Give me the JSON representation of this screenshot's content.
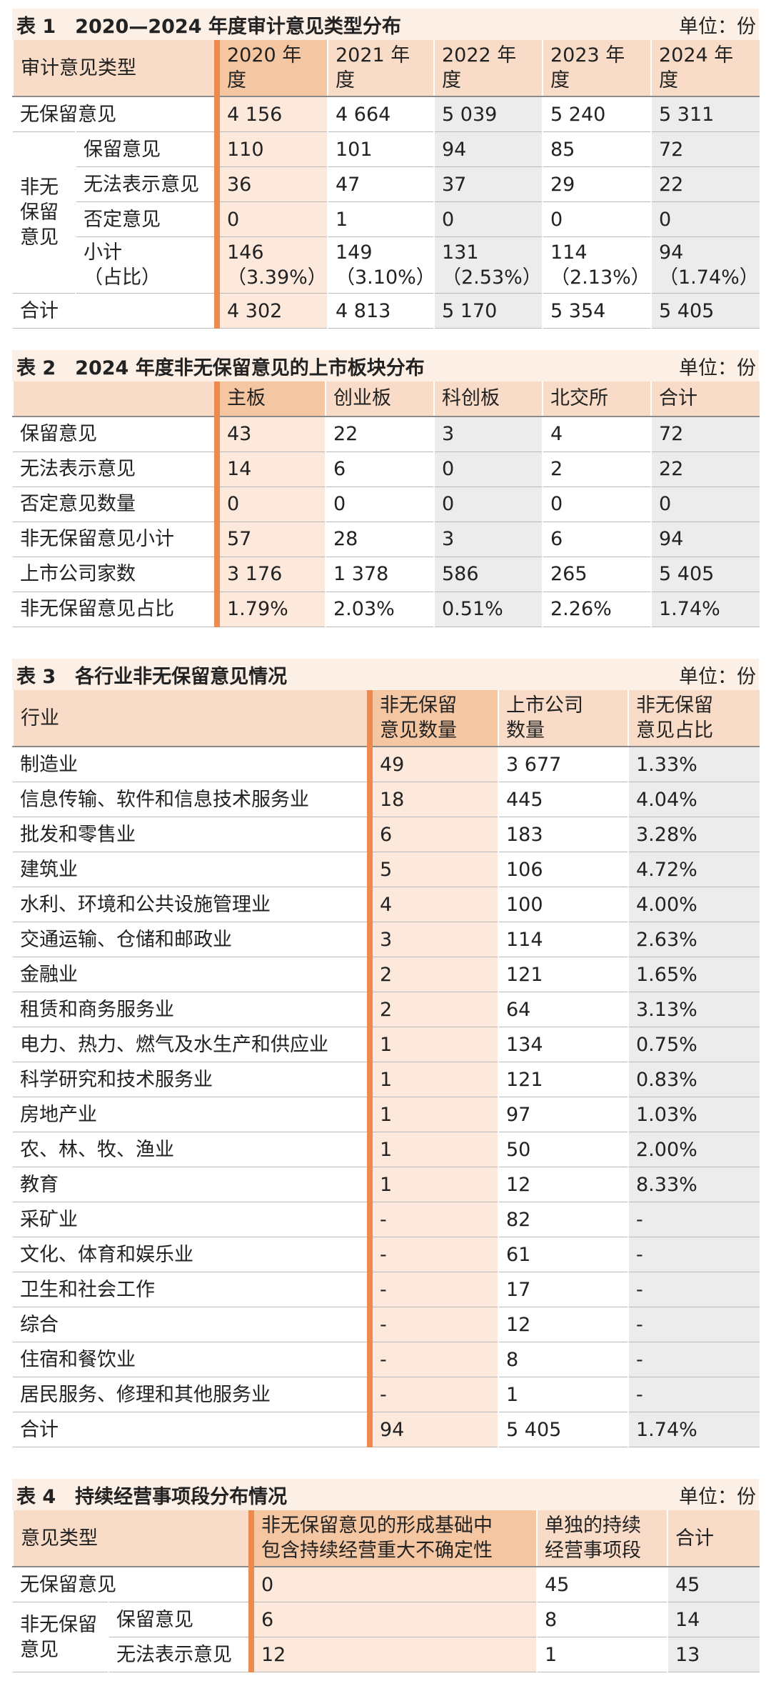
{
  "tables": [
    {
      "title": "表 1　2020—2024 年度审计意见类型分布",
      "unit": "单位：份",
      "header": [
        "审计意见类型",
        "2020 年度",
        "2021 年度",
        "2022 年度",
        "2023 年度",
        "2024 年度"
      ],
      "rows": [
        {
          "label": "无保留意见",
          "values": [
            "4 156",
            "4 664",
            "5 039",
            "5 240",
            "5 311"
          ]
        },
        {
          "group": "非无\n保留\n意见",
          "rows": [
            {
              "label": "保留意见",
              "values": [
                "110",
                "101",
                "94",
                "85",
                "72"
              ]
            },
            {
              "label": "无法表示意见",
              "values": [
                "36",
                "47",
                "37",
                "29",
                "22"
              ]
            },
            {
              "label": "否定意见",
              "values": [
                "0",
                "1",
                "0",
                "0",
                "0"
              ]
            },
            {
              "label": "小计\n（占比）",
              "values": [
                "146\n（3.39%）",
                "149\n（3.10%）",
                "131\n（2.53%）",
                "114\n（2.13%）",
                "94\n（1.74%）"
              ]
            }
          ]
        },
        {
          "label": "合计",
          "values": [
            "4 302",
            "4 813",
            "5 170",
            "5 354",
            "5 405"
          ]
        }
      ]
    },
    {
      "title": "表 2　2024 年度非无保留意见的上市板块分布",
      "unit": "单位：份",
      "header": [
        "主板",
        "创业板",
        "科创板",
        "北交所",
        "合计"
      ],
      "rows": [
        {
          "label": "保留意见",
          "values": [
            "43",
            "22",
            "3",
            "4",
            "72"
          ]
        },
        {
          "label": "无法表示意见",
          "values": [
            "14",
            "6",
            "0",
            "2",
            "22"
          ]
        },
        {
          "label": "否定意见数量",
          "values": [
            "0",
            "0",
            "0",
            "0",
            "0"
          ]
        },
        {
          "label": "非无保留意见小计",
          "values": [
            "57",
            "28",
            "3",
            "6",
            "94"
          ]
        },
        {
          "label": "上市公司家数",
          "values": [
            "3 176",
            "1 378",
            "586",
            "265",
            "5 405"
          ]
        },
        {
          "label": "非无保留意见占比",
          "values": [
            "1.79%",
            "2.03%",
            "0.51%",
            "2.26%",
            "1.74%"
          ]
        }
      ]
    },
    {
      "title": "表 3　各行业非无保留意见情况",
      "unit": "单位：份",
      "header": [
        "行业",
        "非无保留\n意见数量",
        "上市公司\n数量",
        "非无保留\n意见占比"
      ],
      "rows": [
        {
          "label": "制造业",
          "values": [
            "49",
            "3 677",
            "1.33%"
          ]
        },
        {
          "label": "信息传输、软件和信息技术服务业",
          "values": [
            "18",
            "445",
            "4.04%"
          ]
        },
        {
          "label": "批发和零售业",
          "values": [
            "6",
            "183",
            "3.28%"
          ]
        },
        {
          "label": "建筑业",
          "values": [
            "5",
            "106",
            "4.72%"
          ]
        },
        {
          "label": "水利、环境和公共设施管理业",
          "values": [
            "4",
            "100",
            "4.00%"
          ]
        },
        {
          "label": "交通运输、仓储和邮政业",
          "values": [
            "3",
            "114",
            "2.63%"
          ]
        },
        {
          "label": "金融业",
          "values": [
            "2",
            "121",
            "1.65%"
          ]
        },
        {
          "label": "租赁和商务服务业",
          "values": [
            "2",
            "64",
            "3.13%"
          ]
        },
        {
          "label": "电力、热力、燃气及水生产和供应业",
          "values": [
            "1",
            "134",
            "0.75%"
          ]
        },
        {
          "label": "科学研究和技术服务业",
          "values": [
            "1",
            "121",
            "0.83%"
          ]
        },
        {
          "label": "房地产业",
          "values": [
            "1",
            "97",
            "1.03%"
          ]
        },
        {
          "label": "农、林、牧、渔业",
          "values": [
            "1",
            "50",
            "2.00%"
          ]
        },
        {
          "label": "教育",
          "values": [
            "1",
            "12",
            "8.33%"
          ]
        },
        {
          "label": "采矿业",
          "values": [
            "-",
            "82",
            "-"
          ]
        },
        {
          "label": "文化、体育和娱乐业",
          "values": [
            "-",
            "61",
            "-"
          ]
        },
        {
          "label": "卫生和社会工作",
          "values": [
            "-",
            "17",
            "-"
          ]
        },
        {
          "label": "综合",
          "values": [
            "-",
            "12",
            "-"
          ]
        },
        {
          "label": "住宿和餐饮业",
          "values": [
            "-",
            "8",
            "-"
          ]
        },
        {
          "label": "居民服务、修理和其他服务业",
          "values": [
            "-",
            "1",
            "-"
          ]
        },
        {
          "label": "合计",
          "values": [
            "94",
            "5 405",
            "1.74%"
          ]
        }
      ]
    },
    {
      "title": "表 4　持续经营事项段分布情况",
      "unit": "单位：份",
      "header": [
        "意见类型",
        "非无保留意见的形成基础中\n包含持续经营重大不确定性",
        "单独的持续\n经营事项段",
        "合计"
      ],
      "rows": [
        {
          "label": "无保留意见",
          "values": [
            "0",
            "45",
            "45"
          ]
        },
        {
          "group": "非无保留\n意见",
          "rows": [
            {
              "label": "保留意见",
              "values": [
                "6",
                "8",
                "14"
              ]
            },
            {
              "label": "无法表示意见",
              "values": [
                "12",
                "1",
                "13"
              ]
            }
          ]
        }
      ]
    }
  ]
}
